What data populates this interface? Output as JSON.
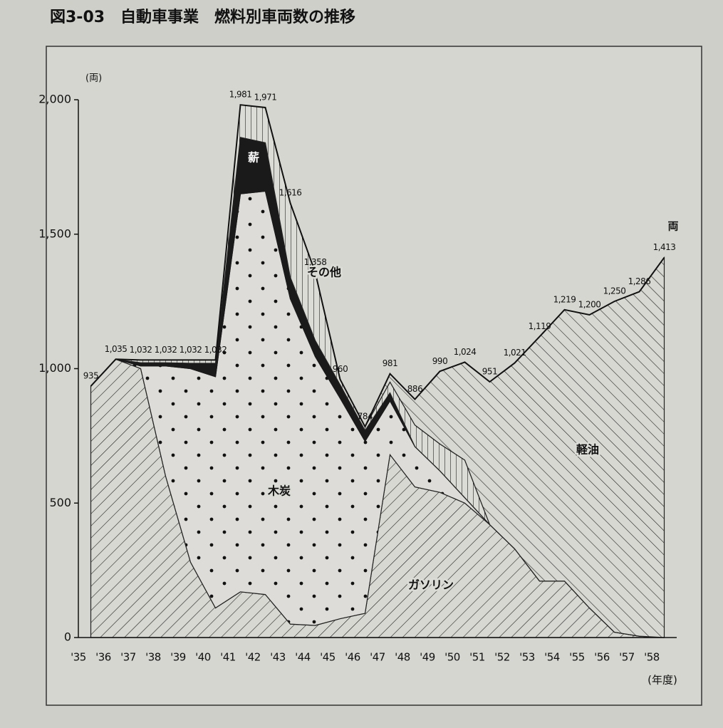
{
  "chart_data": {
    "type": "stacked-area",
    "title": "図3-03　自動車事業　燃料別車両数の推移",
    "y_unit": "(両)",
    "x_unit": "(年度)",
    "end_unit": "両",
    "categories": [
      "'35",
      "'36",
      "'37",
      "'38",
      "'39",
      "'40",
      "'41",
      "'42",
      "'43",
      "'44",
      "'45",
      "'46",
      "'47",
      "'48",
      "'49",
      "'50",
      "'51",
      "'52",
      "'53",
      "'54",
      "'55",
      "'56",
      "'57",
      "'58"
    ],
    "series": [
      {
        "name": "ガソリン",
        "color": "#222222",
        "pattern": "diagonal-down",
        "values": [
          935,
          1035,
          1000,
          600,
          280,
          110,
          170,
          160,
          50,
          45,
          70,
          90,
          680,
          560,
          540,
          500,
          420,
          330,
          210,
          210,
          110,
          20,
          5,
          0
        ]
      },
      {
        "name": "木炭",
        "color": "#222222",
        "pattern": "dots",
        "values": [
          0,
          0,
          10,
          410,
          720,
          860,
          1480,
          1500,
          1210,
          1000,
          820,
          640,
          200,
          150,
          80,
          20,
          0,
          0,
          0,
          0,
          0,
          0,
          0,
          0
        ]
      },
      {
        "name": "薪",
        "color": "#1a1a1a",
        "pattern": "solid",
        "values": [
          0,
          0,
          12,
          12,
          20,
          50,
          210,
          180,
          80,
          60,
          50,
          40,
          30,
          0,
          0,
          0,
          0,
          0,
          0,
          0,
          0,
          0,
          0,
          0
        ]
      },
      {
        "name": "その他",
        "color": "#222222",
        "pattern": "vertical",
        "values": [
          0,
          0,
          10,
          10,
          12,
          12,
          121,
          131,
          276,
          253,
          20,
          14,
          40,
          80,
          100,
          140,
          0,
          0,
          0,
          0,
          0,
          0,
          0,
          0
        ]
      },
      {
        "name": "軽油",
        "color": "#222222",
        "pattern": "diagonal-up",
        "values": [
          0,
          0,
          0,
          0,
          0,
          0,
          0,
          0,
          0,
          0,
          0,
          0,
          31,
          96,
          270,
          364,
          531,
          691,
          909,
          1009,
          1090,
          1230,
          1281,
          1413
        ]
      }
    ],
    "totals": {
      "values": [
        935,
        1035,
        1032,
        1032,
        1032,
        1032,
        1981,
        1971,
        1616,
        1358,
        960,
        784,
        981,
        886,
        990,
        1024,
        951,
        1021,
        1119,
        1219,
        1200,
        1250,
        1286,
        1413
      ],
      "value_labels": [
        "935",
        "1,035",
        "1,032",
        "1,032",
        "1,032",
        "1,032",
        "1,981",
        "1,971",
        "1,616",
        "1,358",
        "960",
        "784",
        "981",
        "886",
        "990",
        "1,024",
        "951",
        "1,021",
        "1,119",
        "1,219",
        "1,200",
        "1,250",
        "1,286",
        "1,413"
      ]
    },
    "ylim": [
      0,
      2000
    ],
    "yticks": [
      0,
      500,
      {
        "value": 1000,
        "label": "1,000"
      },
      {
        "value": 1500,
        "label": "1,500"
      },
      {
        "value": 2000,
        "label": "2,000"
      }
    ]
  }
}
